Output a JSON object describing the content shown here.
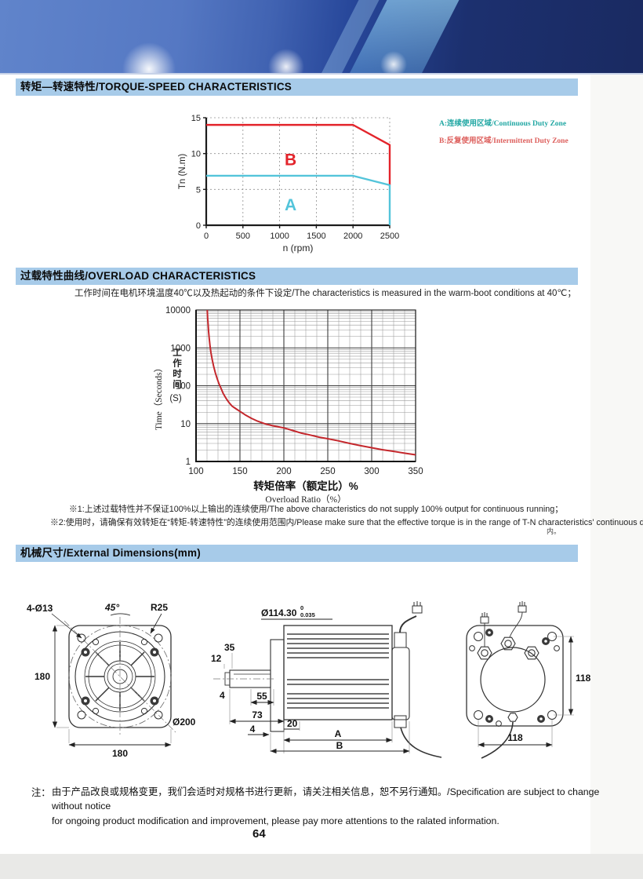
{
  "page": {
    "number": "64"
  },
  "sections": {
    "torque": {
      "title": "转矩—转速特性/TORQUE-SPEED CHARACTERISTICS"
    },
    "overload": {
      "title": "过载特性曲线/OVERLOAD CHARACTERISTICS",
      "description": "工作时间在电机环境温度40℃以及热起动的条件下设定/The characteristics is measured in the warm-boot conditions at 40℃；",
      "note1": "※1:上述过载特性并不保证100%以上输出的连续使用/The above characteristics do not supply 100% output for continuous running；",
      "note2": "※2:使用时，请确保有效转矩在“转矩-转速特性”的连续使用范围内/Please make sure that the effective torque is in the range of T-N characteristics' continuous duty zone",
      "note2_suffix": "内。"
    },
    "dimensions": {
      "title": "机械尺寸/External Dimensions(mm)"
    }
  },
  "chart_data": [
    {
      "id": "torque_speed",
      "type": "line",
      "xlabel": "n (rpm)",
      "ylabel": "Tn (N.m)",
      "xlim": [
        0,
        2500
      ],
      "ylim": [
        0,
        15
      ],
      "x_ticks": [
        0,
        500,
        1000,
        1500,
        2000,
        2500
      ],
      "y_ticks": [
        0,
        5,
        10,
        15
      ],
      "grid": "dotted",
      "series": [
        {
          "name": "B",
          "color": "#e3242b",
          "points": [
            [
              0,
              14
            ],
            [
              2000,
              14
            ],
            [
              2500,
              11.2
            ],
            [
              2500,
              5.6
            ]
          ],
          "zone_label": "B",
          "label_pos": [
            1150,
            8.4
          ]
        },
        {
          "name": "A",
          "color": "#53c4da",
          "points": [
            [
              0,
              6.9
            ],
            [
              2000,
              6.9
            ],
            [
              2500,
              5.6
            ],
            [
              2500,
              0
            ]
          ],
          "zone_label": "A",
          "label_pos": [
            1150,
            2.1
          ]
        }
      ],
      "legend": [
        {
          "key": "A",
          "text": "A:连续使用区域/Continuous Duty Zone"
        },
        {
          "key": "B",
          "text": "B:反复使用区域/Intermittent Duty Zone"
        }
      ]
    },
    {
      "id": "overload",
      "type": "line",
      "xlabel_cn": "转矩倍率（额定比）%",
      "xlabel_en": "Overload Ratio（%）",
      "ylabel_en": "Time（Seconds）",
      "ylabel_cn": "工作时间",
      "ylabel_unit": "(S)",
      "xlim": [
        100,
        350
      ],
      "ylim_log": [
        1,
        10000
      ],
      "x_ticks": [
        100,
        150,
        200,
        250,
        300,
        350
      ],
      "y_ticks": [
        1,
        10,
        100,
        1000,
        10000
      ],
      "x_minor_step": 12.5,
      "series": [
        {
          "name": "overload-curve",
          "color": "#c4272c",
          "points": [
            [
              112.8,
              10000
            ],
            [
              113.2,
              6000
            ],
            [
              113.8,
              4000
            ],
            [
              114.3,
              2700
            ],
            [
              115,
              1800
            ],
            [
              116,
              1100
            ],
            [
              117,
              750
            ],
            [
              118.5,
              480
            ],
            [
              120,
              330
            ],
            [
              122,
              220
            ],
            [
              124,
              155
            ],
            [
              126,
              115
            ],
            [
              128.5,
              85
            ],
            [
              131,
              62
            ],
            [
              134,
              47
            ],
            [
              137.5,
              36
            ],
            [
              141,
              29
            ],
            [
              145,
              25
            ],
            [
              150,
              21
            ],
            [
              156,
              17
            ],
            [
              163,
              13.8
            ],
            [
              170,
              11.6
            ],
            [
              178,
              10
            ],
            [
              187,
              8.8
            ],
            [
              196,
              8
            ],
            [
              200,
              7.7
            ],
            [
              210,
              6.6
            ],
            [
              220,
              5.6
            ],
            [
              230,
              5
            ],
            [
              240,
              4.4
            ],
            [
              250,
              4
            ],
            [
              262,
              3.5
            ],
            [
              275,
              3
            ],
            [
              288,
              2.6
            ],
            [
              300,
              2.3
            ],
            [
              312,
              2.05
            ],
            [
              325,
              1.85
            ],
            [
              338,
              1.65
            ],
            [
              350,
              1.5
            ]
          ]
        }
      ]
    }
  ],
  "drawings": {
    "front_view": {
      "labels": {
        "holes": "4-Ø13",
        "angle": "45°",
        "radius": "R25",
        "height": "180",
        "width": "180",
        "diameter": "Ø200"
      }
    },
    "side_view": {
      "labels": {
        "shaft_dia": "Ø114.30",
        "tol_sup": "0",
        "tol_sub": "0.035",
        "d35": "35",
        "d12": "12",
        "d4a": "4",
        "d55": "55",
        "d73": "73",
        "d4b": "4",
        "d20": "20",
        "dA": "A",
        "dB": "B"
      }
    },
    "rear_view": {
      "labels": {
        "height": "118",
        "width": "118"
      }
    }
  },
  "footer": {
    "note_label": "注：",
    "line1": "由于产品改良或规格变更，我们会适时对规格书进行更新，请关注相关信息，恕不另行通知。/Specification are subject to change without notice",
    "line2": "for ongoing product modification and improvement, please pay more attentions to the ralated information."
  },
  "colors": {
    "section_bar": "#a7cbe9",
    "zone_a": "#53c4da",
    "zone_b": "#e3242b",
    "legend_a": "#21a7a3",
    "legend_b": "#dd5f5c"
  }
}
